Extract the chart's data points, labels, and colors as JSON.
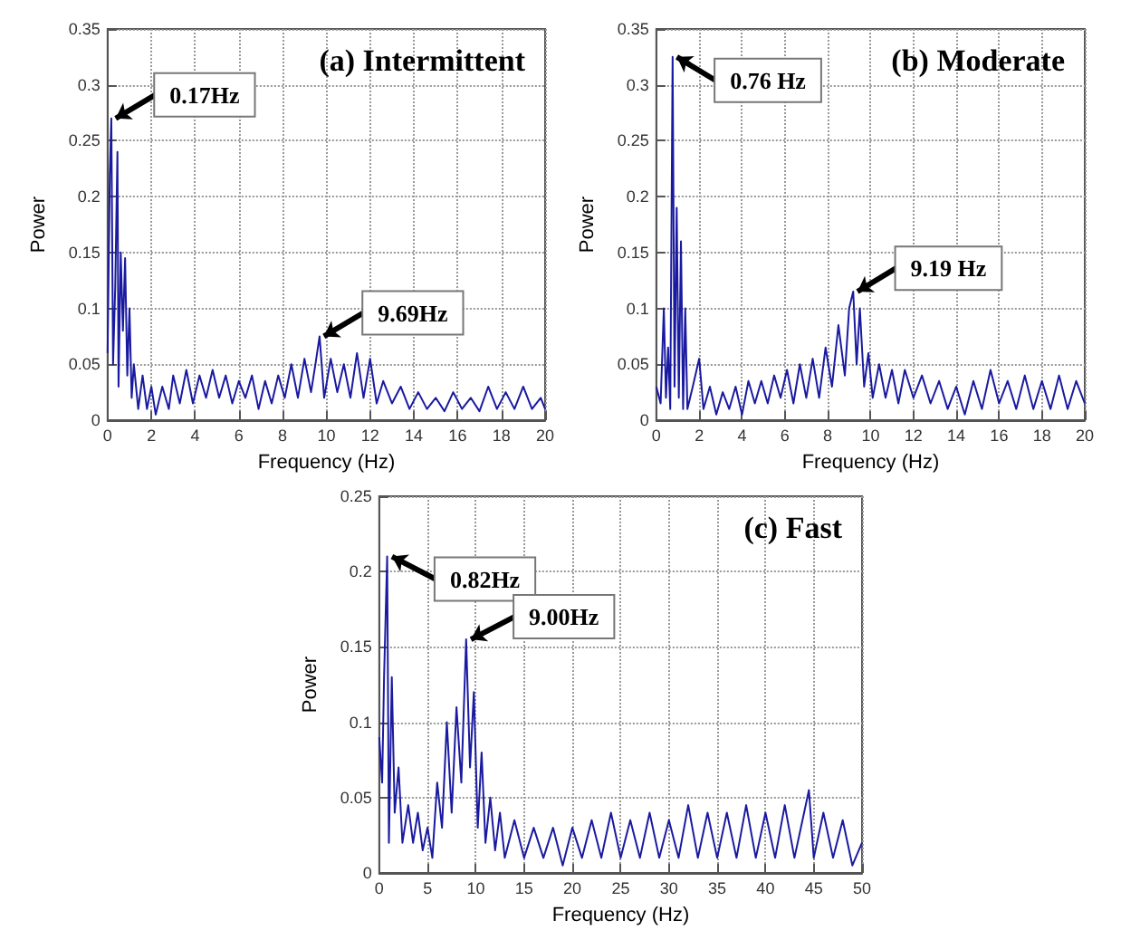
{
  "chart_data": [
    {
      "type": "line",
      "title": "(a) Intermittent",
      "xlabel": "Frequency (Hz)",
      "ylabel": "Power",
      "xlim": [
        0,
        20
      ],
      "xticks": [
        0,
        2,
        4,
        6,
        8,
        10,
        12,
        14,
        16,
        18,
        20
      ],
      "ylim": [
        0,
        0.35
      ],
      "yticks": [
        0,
        0.05,
        0.1,
        0.15,
        0.2,
        0.25,
        0.3,
        0.35
      ],
      "grid": true,
      "line_style": "solid",
      "marker": "none",
      "series": [
        {
          "color": "#1a1aa0",
          "x": [
            0,
            0.1,
            0.17,
            0.25,
            0.35,
            0.45,
            0.5,
            0.6,
            0.7,
            0.8,
            0.9,
            1.0,
            1.1,
            1.2,
            1.4,
            1.6,
            1.8,
            2.0,
            2.2,
            2.5,
            2.8,
            3.0,
            3.3,
            3.6,
            3.9,
            4.2,
            4.5,
            4.8,
            5.1,
            5.4,
            5.7,
            6.0,
            6.3,
            6.6,
            6.9,
            7.2,
            7.5,
            7.8,
            8.1,
            8.4,
            8.7,
            9.0,
            9.3,
            9.5,
            9.69,
            9.9,
            10.2,
            10.5,
            10.8,
            11.1,
            11.4,
            11.7,
            12.0,
            12.3,
            12.6,
            13.0,
            13.4,
            13.8,
            14.2,
            14.6,
            15.0,
            15.4,
            15.8,
            16.2,
            16.6,
            17.0,
            17.4,
            17.8,
            18.2,
            18.6,
            19.0,
            19.4,
            19.8,
            20
          ],
          "values": [
            0.06,
            0.22,
            0.27,
            0.05,
            0.12,
            0.24,
            0.03,
            0.15,
            0.08,
            0.145,
            0.04,
            0.1,
            0.02,
            0.05,
            0.01,
            0.04,
            0.01,
            0.03,
            0.005,
            0.03,
            0.01,
            0.04,
            0.015,
            0.045,
            0.015,
            0.04,
            0.02,
            0.045,
            0.02,
            0.04,
            0.015,
            0.035,
            0.02,
            0.04,
            0.01,
            0.035,
            0.015,
            0.04,
            0.02,
            0.05,
            0.02,
            0.055,
            0.025,
            0.05,
            0.075,
            0.02,
            0.055,
            0.025,
            0.05,
            0.02,
            0.06,
            0.02,
            0.055,
            0.015,
            0.035,
            0.015,
            0.03,
            0.01,
            0.025,
            0.01,
            0.02,
            0.008,
            0.025,
            0.01,
            0.02,
            0.008,
            0.03,
            0.01,
            0.025,
            0.01,
            0.03,
            0.01,
            0.02,
            0.01
          ]
        }
      ],
      "annotations": [
        {
          "text": "0.17Hz",
          "x": 0.17,
          "y": 0.27
        },
        {
          "text": "9.69Hz",
          "x": 9.69,
          "y": 0.075
        }
      ]
    },
    {
      "type": "line",
      "title": "(b) Moderate",
      "xlabel": "Frequency (Hz)",
      "ylabel": "Power",
      "xlim": [
        0,
        20
      ],
      "xticks": [
        0,
        2,
        4,
        6,
        8,
        10,
        12,
        14,
        16,
        18,
        20
      ],
      "ylim": [
        0,
        0.35
      ],
      "yticks": [
        0,
        0.05,
        0.1,
        0.15,
        0.2,
        0.25,
        0.3,
        0.35
      ],
      "grid": true,
      "line_style": "solid",
      "marker": "none",
      "series": [
        {
          "color": "#1a1aa0",
          "x": [
            0,
            0.2,
            0.35,
            0.45,
            0.55,
            0.65,
            0.76,
            0.85,
            0.95,
            1.05,
            1.15,
            1.25,
            1.35,
            1.45,
            1.7,
            2.0,
            2.2,
            2.5,
            2.8,
            3.1,
            3.4,
            3.7,
            4.0,
            4.3,
            4.6,
            4.9,
            5.2,
            5.5,
            5.8,
            6.1,
            6.4,
            6.7,
            7.0,
            7.3,
            7.6,
            7.9,
            8.2,
            8.5,
            8.8,
            9.0,
            9.19,
            9.35,
            9.5,
            9.7,
            9.9,
            10.1,
            10.4,
            10.7,
            11.0,
            11.3,
            11.6,
            12.0,
            12.4,
            12.8,
            13.2,
            13.6,
            14.0,
            14.4,
            14.8,
            15.2,
            15.6,
            16.0,
            16.4,
            16.8,
            17.2,
            17.6,
            18.0,
            18.4,
            18.8,
            19.2,
            19.6,
            20
          ],
          "values": [
            0.03,
            0.015,
            0.1,
            0.02,
            0.065,
            0.01,
            0.325,
            0.03,
            0.19,
            0.02,
            0.16,
            0.01,
            0.1,
            0.01,
            0.03,
            0.055,
            0.01,
            0.03,
            0.005,
            0.025,
            0.01,
            0.03,
            0.005,
            0.035,
            0.015,
            0.035,
            0.015,
            0.04,
            0.02,
            0.045,
            0.015,
            0.05,
            0.02,
            0.055,
            0.02,
            0.065,
            0.03,
            0.085,
            0.04,
            0.1,
            0.115,
            0.05,
            0.1,
            0.03,
            0.06,
            0.02,
            0.05,
            0.02,
            0.045,
            0.015,
            0.045,
            0.02,
            0.04,
            0.015,
            0.035,
            0.01,
            0.03,
            0.005,
            0.035,
            0.01,
            0.045,
            0.015,
            0.035,
            0.01,
            0.04,
            0.01,
            0.035,
            0.01,
            0.04,
            0.01,
            0.035,
            0.015
          ]
        }
      ],
      "annotations": [
        {
          "text": "0.76 Hz",
          "x": 0.76,
          "y": 0.325
        },
        {
          "text": "9.19 Hz",
          "x": 9.19,
          "y": 0.115
        }
      ]
    },
    {
      "type": "line",
      "title": "(c) Fast",
      "xlabel": "Frequency (Hz)",
      "ylabel": "Power",
      "xlim": [
        0,
        50
      ],
      "xticks": [
        0,
        5,
        10,
        15,
        20,
        25,
        30,
        35,
        40,
        45,
        50
      ],
      "ylim": [
        0,
        0.25
      ],
      "yticks": [
        0,
        0.05,
        0.1,
        0.15,
        0.2,
        0.25
      ],
      "grid": true,
      "line_style": "solid",
      "marker": "none",
      "series": [
        {
          "color": "#1a1aa0",
          "x": [
            0,
            0.3,
            0.5,
            0.82,
            1.0,
            1.3,
            1.6,
            2,
            2.4,
            3,
            3.5,
            4,
            4.5,
            5,
            5.5,
            6,
            6.5,
            7,
            7.5,
            8,
            8.5,
            9.0,
            9.4,
            9.8,
            10.2,
            10.6,
            11,
            11.5,
            12,
            12.5,
            13,
            14,
            15,
            16,
            17,
            18,
            19,
            20,
            21,
            22,
            23,
            24,
            25,
            26,
            27,
            28,
            29,
            30,
            31,
            32,
            33,
            34,
            35,
            36,
            37,
            38,
            39,
            40,
            41,
            42,
            43,
            44.5,
            45,
            46,
            47,
            48,
            49,
            50
          ],
          "values": [
            0.09,
            0.06,
            0.13,
            0.21,
            0.02,
            0.13,
            0.04,
            0.07,
            0.02,
            0.045,
            0.02,
            0.04,
            0.015,
            0.03,
            0.01,
            0.06,
            0.03,
            0.1,
            0.04,
            0.11,
            0.06,
            0.155,
            0.07,
            0.12,
            0.03,
            0.08,
            0.02,
            0.05,
            0.015,
            0.04,
            0.01,
            0.035,
            0.01,
            0.03,
            0.01,
            0.03,
            0.005,
            0.03,
            0.01,
            0.035,
            0.01,
            0.04,
            0.01,
            0.035,
            0.01,
            0.04,
            0.01,
            0.035,
            0.01,
            0.045,
            0.01,
            0.04,
            0.01,
            0.04,
            0.01,
            0.045,
            0.01,
            0.04,
            0.01,
            0.045,
            0.01,
            0.055,
            0.01,
            0.04,
            0.01,
            0.035,
            0.005,
            0.02
          ]
        }
      ],
      "annotations": [
        {
          "text": "0.82Hz",
          "x": 0.82,
          "y": 0.21
        },
        {
          "text": "9.00Hz",
          "x": 9.0,
          "y": 0.155
        }
      ]
    }
  ]
}
